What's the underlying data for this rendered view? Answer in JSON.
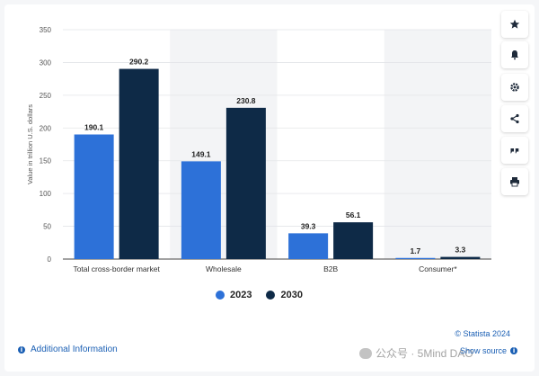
{
  "chart_data": {
    "type": "bar",
    "categories": [
      "Total cross-border market",
      "Wholesale",
      "B2B",
      "Consumer*"
    ],
    "series": [
      {
        "name": "2023",
        "values": [
          190.1,
          149.1,
          39.3,
          1.7
        ],
        "color": "#2d71d8"
      },
      {
        "name": "2030",
        "values": [
          290.2,
          230.8,
          56.1,
          3.3
        ],
        "color": "#0e2a47"
      }
    ],
    "ylabel": "Value in trillion U.S. dollars",
    "xlabel": "",
    "ylim": [
      0,
      350
    ],
    "yticks": [
      "0",
      "50",
      "100",
      "150",
      "200",
      "250",
      "300",
      "350"
    ],
    "value_labels": [
      [
        "190.1",
        "149.1",
        "39.3",
        "1.7"
      ],
      [
        "290.2",
        "230.8",
        "56.1",
        "3.3"
      ]
    ],
    "grid": true,
    "shaded_bands": "alternating",
    "legend_placement": "bottom-center"
  },
  "legend": {
    "item1": "2023",
    "item2": "2030",
    "color1": "#2d71d8",
    "color2": "#0e2a47"
  },
  "toolbar": {
    "icons": [
      "star-icon",
      "bell-icon",
      "gear-icon",
      "share-icon",
      "quote-icon",
      "print-icon"
    ]
  },
  "footer": {
    "credit": "© Statista 2024",
    "show_source": "Show source",
    "additional_info": "Additional Information"
  },
  "watermark": {
    "text": "公众号 · 5Mind DAO"
  }
}
